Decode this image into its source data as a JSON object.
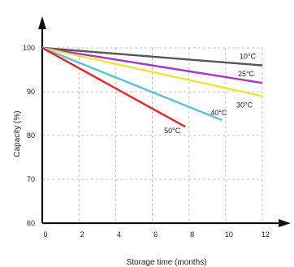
{
  "chart_data": {
    "type": "line",
    "title": "",
    "xlabel": "Storage time (months)",
    "ylabel": "Capacity (%)",
    "xlim": [
      0,
      12
    ],
    "ylim": [
      60,
      100
    ],
    "xticks": [
      "0",
      "2",
      "4",
      "6",
      "8",
      "10",
      "12"
    ],
    "yticks": [
      "60",
      "70",
      "80",
      "90",
      "100"
    ],
    "grid": true,
    "series": [
      {
        "name": "10°C",
        "color": "#555555",
        "x": [
          0,
          12
        ],
        "y": [
          100,
          96
        ]
      },
      {
        "name": "25°C",
        "color": "#a335c9",
        "x": [
          0,
          12
        ],
        "y": [
          100,
          92
        ]
      },
      {
        "name": "30°C",
        "color": "#f2e23a",
        "x": [
          0,
          12
        ],
        "y": [
          100,
          89
        ]
      },
      {
        "name": "40°C",
        "color": "#5bc0d9",
        "x": [
          0,
          9.8
        ],
        "y": [
          100,
          83.5
        ]
      },
      {
        "name": "50°C",
        "color": "#e82424",
        "x": [
          0,
          7.8
        ],
        "y": [
          100,
          82
        ]
      }
    ]
  }
}
